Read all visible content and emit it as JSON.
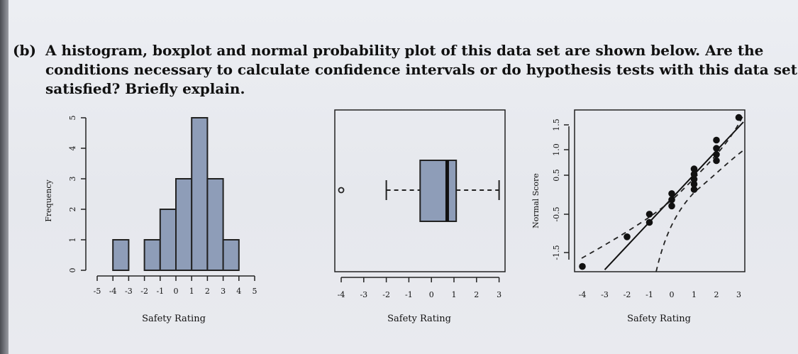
{
  "question": {
    "label": "(b)",
    "line1": "A histogram, boxplot and normal probability plot of this data set are shown below. Are the",
    "line2": "conditions necessary to calculate confidence intervals or do hypothesis tests with this data set",
    "line3": "satisfied? Briefly explain."
  },
  "chart_data": [
    {
      "type": "bar",
      "subtype": "histogram",
      "xlabel": "Safety Rating",
      "ylabel": "Frequency",
      "bin_edges": [
        -5,
        -4,
        -3,
        -2,
        -1,
        0,
        1,
        2,
        3,
        4,
        5
      ],
      "x_tick_labels": [
        "-5",
        "-4",
        "-3",
        "-2",
        "-1",
        "0",
        "1",
        "2",
        "3",
        "4",
        "5"
      ],
      "y_tick_labels": [
        "0",
        "1",
        "2",
        "3",
        "4",
        "5"
      ],
      "values": [
        0,
        1,
        0,
        1,
        2,
        3,
        5,
        3,
        1,
        0
      ],
      "ylim": [
        0,
        5
      ],
      "bar_color": "#8e9db8"
    },
    {
      "type": "boxplot",
      "xlabel": "Safety Rating",
      "x_tick_labels": [
        "-4",
        "-3",
        "-2",
        "-1",
        "0",
        "1",
        "2",
        "3"
      ],
      "xlim": [
        -4,
        3
      ],
      "whisker_low": -2,
      "q1": -0.5,
      "median": 0.7,
      "q3": 1.1,
      "whisker_high": 3,
      "outliers": [
        -4
      ],
      "box_color": "#8e9db8"
    },
    {
      "type": "scatter",
      "subtype": "normal probability plot",
      "xlabel": "Safety Rating",
      "ylabel": "Normal Score",
      "x_tick_labels": [
        "-4",
        "-3",
        "-2",
        "-1",
        "0",
        "1",
        "2",
        "3"
      ],
      "y_tick_labels": [
        "-1.5",
        "-0.5",
        "0.5",
        "1.0",
        "1.5"
      ],
      "xlim": [
        -4,
        3
      ],
      "ylim": [
        -1.9,
        1.9
      ],
      "points": [
        {
          "x": -4,
          "y": -1.82
        },
        {
          "x": -2,
          "y": -1.1
        },
        {
          "x": -1,
          "y": -0.75
        },
        {
          "x": -1,
          "y": -0.55
        },
        {
          "x": 0,
          "y": -0.35
        },
        {
          "x": 0,
          "y": -0.2
        },
        {
          "x": 0,
          "y": -0.05
        },
        {
          "x": 1,
          "y": 0.05
        },
        {
          "x": 1,
          "y": 0.18
        },
        {
          "x": 1,
          "y": 0.3
        },
        {
          "x": 1,
          "y": 0.42
        },
        {
          "x": 1,
          "y": 0.55
        },
        {
          "x": 2,
          "y": 0.75
        },
        {
          "x": 2,
          "y": 0.9
        },
        {
          "x": 2,
          "y": 1.05
        },
        {
          "x": 2,
          "y": 1.25
        },
        {
          "x": 3,
          "y": 1.8
        }
      ],
      "reference_line": [
        [
          -3,
          -1.9
        ],
        [
          3,
          1.9
        ]
      ]
    }
  ]
}
